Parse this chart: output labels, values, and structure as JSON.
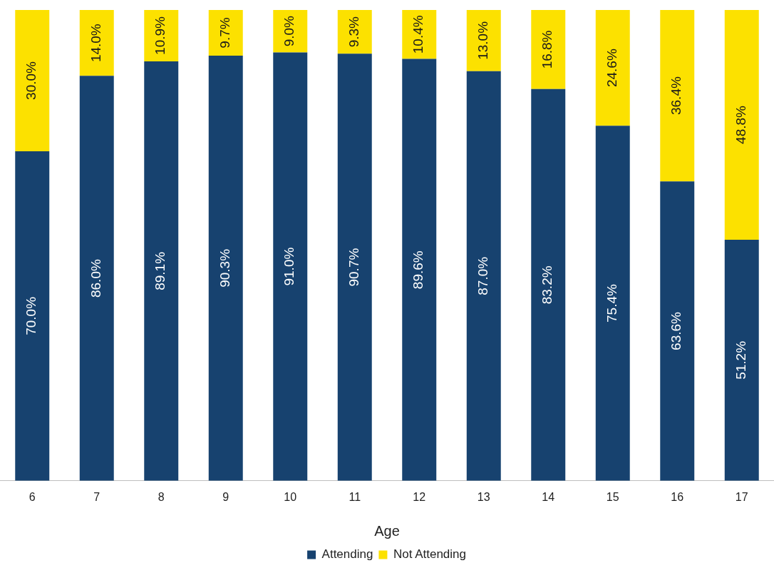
{
  "chart_data": {
    "type": "bar",
    "stacked": true,
    "xlabel": "Age",
    "categories": [
      "6",
      "7",
      "8",
      "9",
      "10",
      "11",
      "12",
      "13",
      "14",
      "15",
      "16",
      "17"
    ],
    "ylim": [
      0,
      100
    ],
    "tick_labels": "x",
    "legend": "bottom",
    "series": [
      {
        "name": "Attending",
        "color": "#17426f",
        "values": [
          70.0,
          86.0,
          89.1,
          90.3,
          91.0,
          90.7,
          89.6,
          87.0,
          83.2,
          75.4,
          63.6,
          51.2
        ],
        "value_labels": [
          "70.0%",
          "86.0%",
          "89.1%",
          "90.3%",
          "91.0%",
          "90.7%",
          "89.6%",
          "87.0%",
          "83.2%",
          "75.4%",
          "63.6%",
          "51.2%"
        ]
      },
      {
        "name": "Not Attending",
        "color": "#fce100",
        "values": [
          30.0,
          14.0,
          10.9,
          9.7,
          9.0,
          9.3,
          10.4,
          13.0,
          16.8,
          24.6,
          36.4,
          48.8
        ],
        "value_labels": [
          "30.0%",
          "14.0%",
          "10.9%",
          "9.7%",
          "9.0%",
          "9.3%",
          "10.4%",
          "13.0%",
          "16.8%",
          "24.6%",
          "36.4%",
          "48.8%"
        ]
      }
    ]
  }
}
